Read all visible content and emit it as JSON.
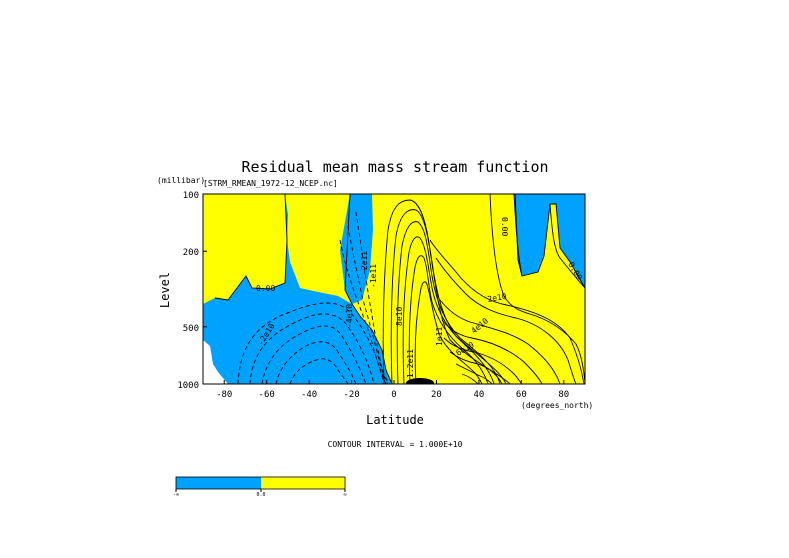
{
  "chart_data": {
    "type": "contour",
    "title": "Residual mean mass stream function",
    "subtitle": "[STRM_RMEAN_1972-12_NCEP.nc]",
    "xlabel": "Latitude",
    "x_units": "(degrees_north)",
    "ylabel": "Level",
    "y_units": "(millibar)",
    "x_ticks": [
      -80,
      -60,
      -40,
      -20,
      0,
      20,
      40,
      60,
      80
    ],
    "y_ticks": [
      100,
      200,
      500,
      1000
    ],
    "xlim": [
      -90,
      90
    ],
    "ylim": [
      1000,
      100
    ],
    "y_scale": "log",
    "contour_interval_text": "CONTOUR INTERVAL = 1.000E+10",
    "contour_labels": [
      "0.00",
      "-2e10",
      "-4e10",
      "-1e11",
      "-2e11",
      "2e10",
      "4e10",
      "6e10",
      "8e10",
      "1e11",
      "1.2e11",
      "0.00",
      "0.00"
    ],
    "fill_colors": {
      "negative": "#00a2ff",
      "positive": "#ffff00"
    },
    "colorbar": {
      "labels": [
        "-∞",
        "0.0",
        "∞"
      ],
      "colors": [
        "#00a2ff",
        "#ffff00"
      ]
    }
  }
}
